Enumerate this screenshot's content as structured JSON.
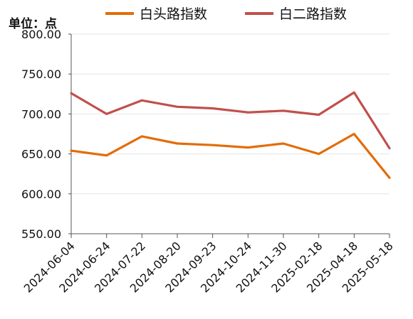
{
  "chart_data": {
    "type": "line",
    "unit_label": "单位：点",
    "x": [
      "2024-06-04",
      "2024-06-24",
      "2024-07-22",
      "2024-08-20",
      "2024-09-23",
      "2024-10-24",
      "2024-11-30",
      "2025-02-18",
      "2025-04-18",
      "2025-05-18"
    ],
    "ylim": [
      550,
      800
    ],
    "yticks": [
      "800.00",
      "750.00",
      "700.00",
      "650.00",
      "600.00",
      "550.00"
    ],
    "series": [
      {
        "name": "白头路指数",
        "color": "#E36C09",
        "values": [
          654,
          648,
          672,
          663,
          661,
          658,
          663,
          650,
          675,
          620
        ]
      },
      {
        "name": "白二路指数",
        "color": "#C0504D",
        "values": [
          726,
          700,
          717,
          709,
          707,
          702,
          704,
          699,
          727,
          657
        ]
      }
    ],
    "grid": true,
    "legend_position": "top"
  }
}
